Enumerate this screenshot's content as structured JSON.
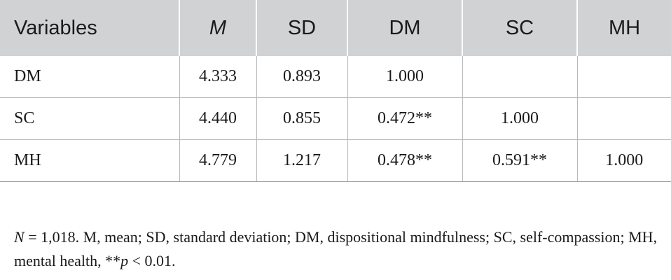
{
  "table": {
    "headers": [
      "Variables",
      "M",
      "SD",
      "DM",
      "SC",
      "MH"
    ],
    "rows": [
      [
        "DM",
        "4.333",
        "0.893",
        "1.000",
        "",
        ""
      ],
      [
        "SC",
        "4.440",
        "0.855",
        "0.472**",
        "1.000",
        ""
      ],
      [
        "MH",
        "4.779",
        "1.217",
        "0.478**",
        "0.591**",
        "1.000"
      ]
    ]
  },
  "note": {
    "n_symbol": "N",
    "n_value": " = 1,018. M, mean; SD, standard deviation; DM, dispositional mindfulness; SC, self-compassion; MH, mental health, **",
    "p_symbol": "p",
    "p_value": " < 0.01."
  }
}
